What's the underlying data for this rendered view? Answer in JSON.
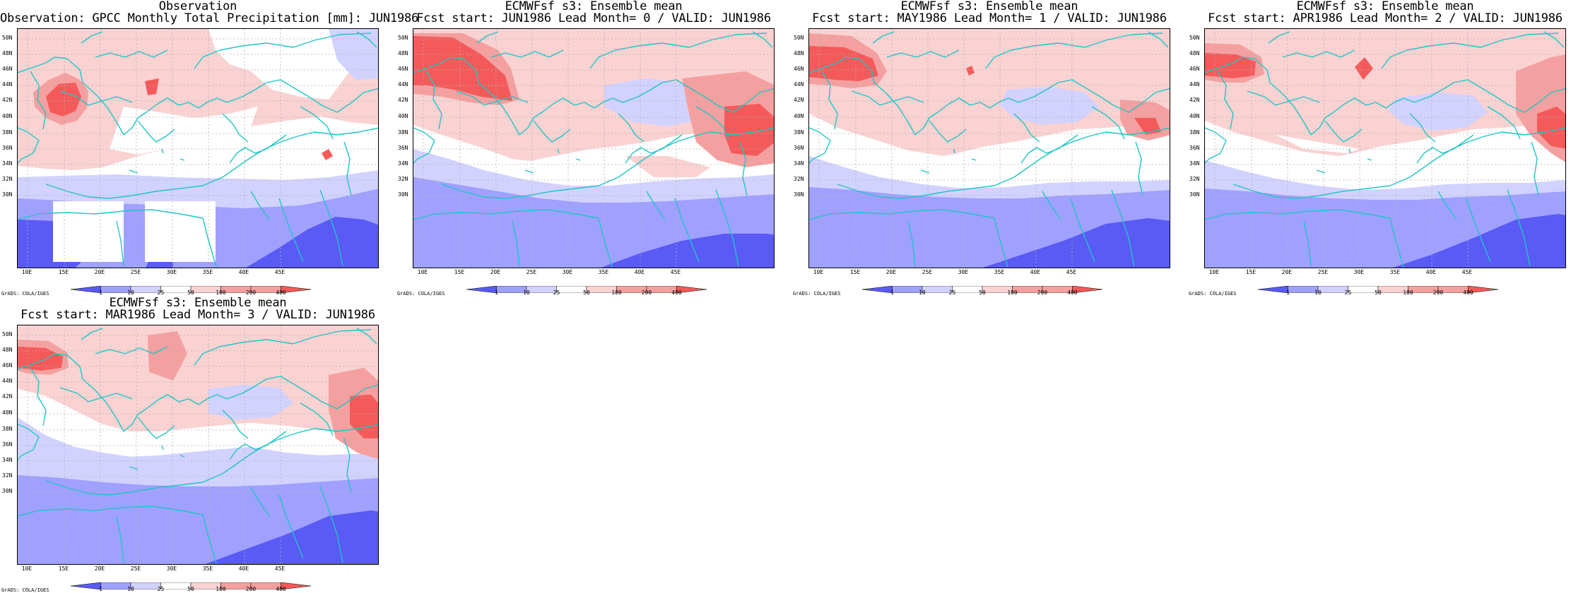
{
  "figure": {
    "credit": "GrADS: COLA/IGES",
    "lat_ticks": [
      "50N",
      "48N",
      "46N",
      "44N",
      "42N",
      "40N",
      "38N",
      "36N",
      "34N",
      "32N",
      "30N"
    ],
    "lon_ticks": [
      "10E",
      "15E",
      "20E",
      "25E",
      "30E",
      "35E",
      "40E",
      "45E"
    ],
    "colorbar": {
      "levels": [
        "1",
        "10",
        "25",
        "50",
        "100",
        "200",
        "400"
      ],
      "colors": [
        "#5a5af5",
        "#a0a0ff",
        "#d2d2ff",
        "#ffffff",
        "#fad2d2",
        "#f5a0a0",
        "#f55a5a"
      ]
    },
    "coast_color": "#20c5c5"
  },
  "panels": [
    {
      "title_line1": "Observation",
      "title_line2": "Observation: GPCC Monthly Total Precipitation [mm]: JUN1986",
      "variant": "obs"
    },
    {
      "title_line1": "ECMWFsf s3: Ensemble mean",
      "title_line2": "Fcst start: JUN1986  Lead Month= 0 / VALID: JUN1986",
      "variant": "lead0"
    },
    {
      "title_line1": "ECMWFsf s3: Ensemble mean",
      "title_line2": "Fcst start: MAY1986  Lead Month= 1 / VALID: JUN1986",
      "variant": "lead1"
    },
    {
      "title_line1": "ECMWFsf s3: Ensemble mean",
      "title_line2": "Fcst start: APR1986  Lead Month= 2 / VALID: JUN1986",
      "variant": "lead2"
    },
    {
      "title_line1": "ECMWFsf s3: Ensemble mean",
      "title_line2": "Fcst start: MAR1986  Lead Month= 3 / VALID: JUN1986",
      "variant": "lead3"
    }
  ]
}
